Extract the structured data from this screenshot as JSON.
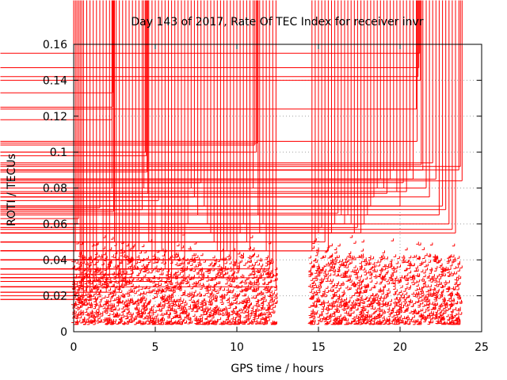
{
  "chart_data": {
    "type": "scatter",
    "title": "Day 143 of 2017, Rate Of TEC Index for receiver invr",
    "xlabel": "GPS time / hours",
    "ylabel": "ROTI / TECUs",
    "xlim": [
      0,
      25
    ],
    "ylim": [
      0,
      0.16
    ],
    "xticks": [
      0,
      5,
      10,
      15,
      20,
      25
    ],
    "xtick_labels": [
      "0",
      "5",
      "10",
      "15",
      "20",
      "25"
    ],
    "yticks": [
      0,
      0.02,
      0.04,
      0.06,
      0.08,
      0.1,
      0.12,
      0.14,
      0.16
    ],
    "ytick_labels": [
      "0",
      "0.02",
      "0.04",
      "0.06",
      "0.08",
      "0.1",
      "0.12",
      "0.14",
      "0.16"
    ],
    "grid": true,
    "marker": "+",
    "color": "#ff0000",
    "data_gap_hours": [
      12.5,
      14.5
    ],
    "series": [
      {
        "name": "ROTI (receiver invr)",
        "x": [
          0.0,
          0.1,
          0.2,
          0.3,
          0.4,
          0.5,
          0.6,
          0.8,
          1.0,
          1.2,
          1.4,
          1.6,
          1.8,
          2.0,
          2.2,
          2.35,
          2.35,
          2.38,
          2.4,
          2.45,
          2.5,
          2.6,
          2.8,
          3.0,
          3.2,
          3.4,
          3.6,
          3.8,
          4.0,
          4.2,
          4.3,
          4.4,
          4.45,
          4.5,
          4.55,
          4.6,
          4.8,
          5.0,
          5.2,
          5.4,
          5.6,
          5.8,
          6.0,
          6.2,
          6.4,
          6.6,
          6.8,
          7.0,
          7.2,
          7.4,
          7.6,
          7.8,
          8.0,
          8.2,
          8.4,
          8.6,
          8.8,
          9.0,
          9.2,
          9.4,
          9.6,
          9.8,
          10.0,
          10.2,
          10.4,
          10.6,
          10.8,
          11.0,
          11.1,
          11.2,
          11.25,
          11.3,
          11.4,
          11.6,
          11.8,
          12.0,
          12.2,
          12.4,
          14.6,
          14.8,
          15.0,
          15.2,
          15.4,
          15.6,
          15.8,
          16.0,
          16.2,
          16.4,
          16.6,
          16.8,
          17.0,
          17.2,
          17.4,
          17.6,
          17.8,
          18.0,
          18.2,
          18.4,
          18.6,
          18.8,
          19.0,
          19.2,
          19.4,
          19.6,
          19.8,
          20.0,
          20.2,
          20.4,
          20.6,
          20.8,
          21.0,
          21.05,
          21.1,
          21.15,
          21.2,
          21.25,
          21.3,
          21.4,
          21.6,
          21.8,
          22.0,
          22.2,
          22.4,
          22.6,
          22.8,
          23.0,
          23.2,
          23.4,
          23.6,
          23.7,
          23.8
        ],
        "y": [
          0.018,
          0.045,
          0.06,
          0.063,
          0.03,
          0.025,
          0.02,
          0.022,
          0.018,
          0.025,
          0.03,
          0.069,
          0.028,
          0.022,
          0.03,
          0.08,
          0.118,
          0.125,
          0.133,
          0.067,
          0.05,
          0.03,
          0.022,
          0.025,
          0.028,
          0.04,
          0.032,
          0.035,
          0.045,
          0.068,
          0.08,
          0.1,
          0.098,
          0.089,
          0.077,
          0.05,
          0.035,
          0.04,
          0.073,
          0.045,
          0.035,
          0.03,
          0.028,
          0.04,
          0.05,
          0.045,
          0.03,
          0.06,
          0.08,
          0.075,
          0.065,
          0.083,
          0.07,
          0.06,
          0.055,
          0.05,
          0.045,
          0.04,
          0.035,
          0.045,
          0.04,
          0.03,
          0.035,
          0.055,
          0.06,
          0.05,
          0.045,
          0.08,
          0.104,
          0.1,
          0.105,
          0.065,
          0.055,
          0.06,
          0.045,
          0.035,
          0.03,
          0.025,
          0.045,
          0.05,
          0.055,
          0.058,
          0.05,
          0.045,
          0.055,
          0.06,
          0.066,
          0.065,
          0.06,
          0.065,
          0.06,
          0.055,
          0.058,
          0.055,
          0.06,
          0.065,
          0.07,
          0.075,
          0.08,
          0.085,
          0.08,
          0.077,
          0.085,
          0.09,
          0.078,
          0.07,
          0.083,
          0.078,
          0.09,
          0.085,
          0.124,
          0.106,
          0.142,
          0.147,
          0.155,
          0.14,
          0.093,
          0.09,
          0.08,
          0.075,
          0.094,
          0.085,
          0.065,
          0.07,
          0.068,
          0.06,
          0.057,
          0.055,
          0.09,
          0.092,
          0.084
        ]
      }
    ]
  }
}
